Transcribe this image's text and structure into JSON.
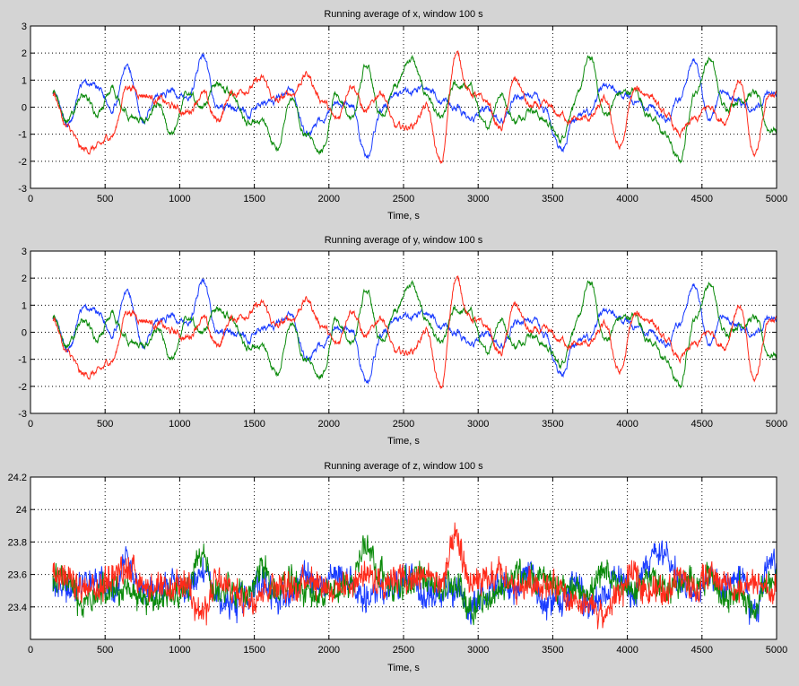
{
  "colors": {
    "blue": "#1a3cff",
    "green": "#0a8a0a",
    "red": "#ff2a1a",
    "background": "#d4d4d4"
  },
  "chart_data": [
    {
      "type": "line",
      "title": "Running average of x, window 100 s",
      "xlabel": "Time, s",
      "ylabel": "",
      "xlim": [
        0,
        5000
      ],
      "ylim": [
        -3,
        3
      ],
      "xticks": [
        0,
        500,
        1000,
        1500,
        2000,
        2500,
        3000,
        3500,
        4000,
        4500,
        5000
      ],
      "yticks": [
        -3,
        -2,
        -1,
        0,
        1,
        2,
        3
      ],
      "grid": true,
      "x_start": 150,
      "x_step": 100,
      "series": [
        {
          "name": "blue",
          "color": "#1a3cff",
          "values": [
            0.5,
            -0.7,
            0.8,
            0.8,
            0.0,
            1.5,
            -0.5,
            0.5,
            0.6,
            0.2,
            1.8,
            0.0,
            0.0,
            -0.2,
            0.0,
            0.3,
            0.5,
            -1.0,
            -0.5,
            0.2,
            0.0,
            -1.8,
            -0.2,
            0.5,
            0.5,
            0.8,
            0.3,
            0.0,
            -0.5,
            0.0,
            -0.6,
            0.4,
            0.5,
            -0.2,
            -1.5,
            -0.5,
            -0.3,
            0.8,
            0.5,
            0.3,
            0.0,
            -0.5,
            0.2,
            1.8,
            -0.5,
            0.5,
            0.2,
            0.0,
            0.5
          ]
        },
        {
          "name": "green",
          "color": "#0a8a0a",
          "values": [
            0.5,
            -0.5,
            0.5,
            -0.3,
            0.7,
            -0.3,
            -0.5,
            0.0,
            -1.0,
            0.5,
            0.0,
            0.8,
            0.5,
            -0.5,
            -0.5,
            -1.5,
            0.3,
            -1.0,
            -1.6,
            0.5,
            -0.5,
            1.5,
            -0.3,
            0.8,
            1.8,
            0.5,
            -0.5,
            0.8,
            0.7,
            -0.8,
            0.5,
            -0.5,
            0.0,
            -0.5,
            -1.2,
            0.2,
            1.8,
            -0.3,
            0.5,
            0.6,
            -0.3,
            -1.0,
            -2.0,
            0.5,
            1.8,
            0.0,
            0.3,
            0.5,
            -0.8
          ]
        },
        {
          "name": "red",
          "color": "#ff2a1a",
          "values": [
            0.5,
            -0.8,
            -1.6,
            -1.5,
            -1.0,
            0.8,
            0.5,
            0.3,
            0.0,
            -0.2,
            0.5,
            -0.5,
            0.5,
            0.7,
            1.0,
            0.2,
            0.5,
            1.2,
            0.3,
            -0.5,
            0.9,
            -0.2,
            0.6,
            -0.8,
            -0.7,
            0.0,
            -2.1,
            2.0,
            0.5,
            0.2,
            -0.8,
            1.0,
            0.0,
            0.0,
            -0.3,
            -0.5,
            -0.4,
            0.2,
            -1.5,
            0.6,
            0.5,
            -0.3,
            -1.0,
            -0.5,
            0.0,
            -0.5,
            1.0,
            -1.8,
            0.5
          ]
        }
      ]
    },
    {
      "type": "line",
      "title": "Running average of y, window 100 s",
      "xlabel": "Time, s",
      "ylabel": "",
      "xlim": [
        0,
        5000
      ],
      "ylim": [
        -3,
        3
      ],
      "xticks": [
        0,
        500,
        1000,
        1500,
        2000,
        2500,
        3000,
        3500,
        4000,
        4500,
        5000
      ],
      "yticks": [
        -3,
        -2,
        -1,
        0,
        1,
        2,
        3
      ],
      "grid": true,
      "x_start": 150,
      "x_step": 100,
      "series": [
        {
          "name": "blue",
          "color": "#1a3cff",
          "values": [
            0.5,
            -0.7,
            0.8,
            0.8,
            0.0,
            1.5,
            -0.5,
            0.5,
            0.6,
            0.2,
            1.8,
            0.0,
            0.0,
            -0.2,
            0.0,
            0.3,
            0.5,
            -1.0,
            -0.5,
            0.2,
            0.0,
            -1.8,
            -0.2,
            0.5,
            0.5,
            0.8,
            0.3,
            0.0,
            -0.5,
            0.0,
            -0.6,
            0.4,
            0.5,
            -0.2,
            -1.5,
            -0.5,
            -0.3,
            0.8,
            0.5,
            0.3,
            0.0,
            -0.5,
            0.2,
            1.8,
            -0.5,
            0.5,
            0.2,
            0.0,
            0.5
          ]
        },
        {
          "name": "green",
          "color": "#0a8a0a",
          "values": [
            0.5,
            -0.5,
            0.5,
            -0.3,
            0.7,
            -0.3,
            -0.5,
            0.0,
            -1.0,
            0.5,
            0.0,
            0.8,
            0.5,
            -0.5,
            -0.5,
            -1.5,
            0.3,
            -1.0,
            -1.6,
            0.5,
            -0.5,
            1.5,
            -0.3,
            0.8,
            1.8,
            0.5,
            -0.5,
            0.8,
            0.7,
            -0.8,
            0.5,
            -0.5,
            0.0,
            -0.5,
            -1.2,
            0.2,
            1.8,
            -0.3,
            0.5,
            0.6,
            -0.3,
            -1.0,
            -2.0,
            0.5,
            1.8,
            0.0,
            0.3,
            0.5,
            -0.8
          ]
        },
        {
          "name": "red",
          "color": "#ff2a1a",
          "values": [
            0.5,
            -0.8,
            -1.6,
            -1.5,
            -1.0,
            0.8,
            0.5,
            0.3,
            0.0,
            -0.2,
            0.5,
            -0.5,
            0.5,
            0.7,
            1.0,
            0.2,
            0.5,
            1.2,
            0.3,
            -0.5,
            0.9,
            -0.2,
            0.6,
            -0.8,
            -0.7,
            0.0,
            -2.1,
            2.0,
            0.5,
            0.2,
            -0.8,
            1.0,
            0.0,
            0.0,
            -0.3,
            -0.5,
            -0.4,
            0.2,
            -1.5,
            0.6,
            0.5,
            -0.3,
            -1.0,
            -0.5,
            0.0,
            -0.5,
            1.0,
            -1.8,
            0.5
          ]
        }
      ]
    },
    {
      "type": "line",
      "title": "Running average of z, window 100 s",
      "xlabel": "Time, s",
      "ylabel": "",
      "xlim": [
        0,
        5000
      ],
      "ylim": [
        23.2,
        24.2
      ],
      "xticks": [
        0,
        500,
        1000,
        1500,
        2000,
        2500,
        3000,
        3500,
        4000,
        4500,
        5000
      ],
      "yticks": [
        23.4,
        23.6,
        23.8,
        24,
        24.2
      ],
      "grid": true,
      "x_start": 150,
      "x_step": 100,
      "series": [
        {
          "name": "blue",
          "color": "#1a3cff",
          "values": [
            23.55,
            23.5,
            23.55,
            23.55,
            23.5,
            23.7,
            23.5,
            23.5,
            23.55,
            23.5,
            23.6,
            23.45,
            23.4,
            23.45,
            23.55,
            23.45,
            23.5,
            23.6,
            23.5,
            23.6,
            23.55,
            23.45,
            23.5,
            23.55,
            23.6,
            23.45,
            23.5,
            23.5,
            23.4,
            23.5,
            23.55,
            23.5,
            23.6,
            23.4,
            23.45,
            23.55,
            23.4,
            23.5,
            23.6,
            23.5,
            23.7,
            23.75,
            23.55,
            23.45,
            23.6,
            23.5,
            23.6,
            23.35,
            23.65
          ]
        },
        {
          "name": "green",
          "color": "#0a8a0a",
          "values": [
            23.55,
            23.6,
            23.4,
            23.5,
            23.5,
            23.5,
            23.45,
            23.45,
            23.5,
            23.5,
            23.7,
            23.5,
            23.5,
            23.45,
            23.65,
            23.5,
            23.55,
            23.5,
            23.45,
            23.5,
            23.55,
            23.8,
            23.6,
            23.5,
            23.55,
            23.6,
            23.5,
            23.55,
            23.4,
            23.45,
            23.5,
            23.6,
            23.55,
            23.6,
            23.5,
            23.5,
            23.5,
            23.6,
            23.55,
            23.5,
            23.6,
            23.5,
            23.55,
            23.55,
            23.6,
            23.45,
            23.5,
            23.4,
            23.55
          ]
        },
        {
          "name": "red",
          "color": "#ff2a1a",
          "values": [
            23.65,
            23.55,
            23.5,
            23.5,
            23.6,
            23.65,
            23.55,
            23.5,
            23.5,
            23.55,
            23.35,
            23.55,
            23.5,
            23.45,
            23.5,
            23.55,
            23.5,
            23.6,
            23.55,
            23.5,
            23.55,
            23.6,
            23.55,
            23.6,
            23.55,
            23.6,
            23.55,
            23.8,
            23.55,
            23.55,
            23.6,
            23.5,
            23.55,
            23.55,
            23.5,
            23.4,
            23.4,
            23.35,
            23.5,
            23.6,
            23.5,
            23.5,
            23.6,
            23.5,
            23.6,
            23.55,
            23.5,
            23.55,
            23.5
          ]
        }
      ]
    }
  ]
}
